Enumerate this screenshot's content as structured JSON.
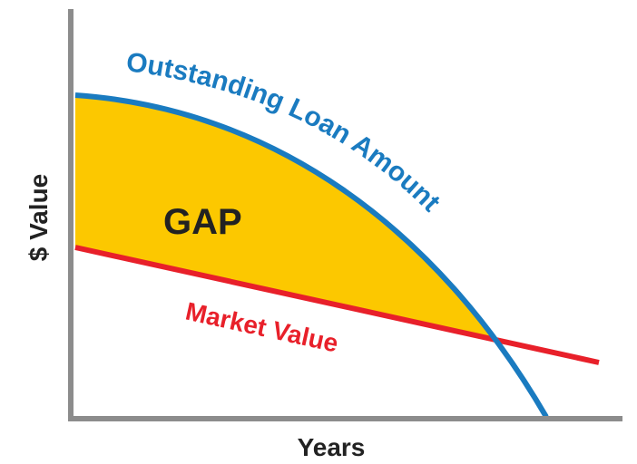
{
  "curves": {
    "loan": "Outstanding Loan Amount",
    "market": "Market Value",
    "gap": "GAP"
  },
  "axes": {
    "y_label": "$ Value",
    "x_label": "Years"
  }
}
